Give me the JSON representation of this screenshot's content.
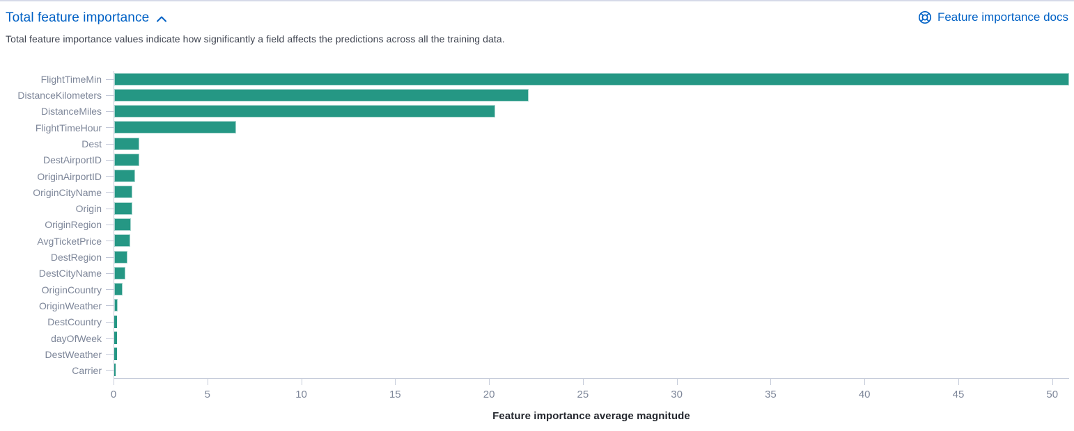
{
  "panel": {
    "title": "Total feature importance",
    "docs_link": "Feature importance docs",
    "description": "Total feature importance values indicate how significantly a field affects the predictions across all the training data."
  },
  "colors": {
    "accent_blue": "#0061c5",
    "bar_teal": "#259784",
    "axis_line": "#c6ccda",
    "axis_text": "#7d8699",
    "body_text": "#3f4450"
  },
  "chart_data": {
    "type": "bar",
    "orientation": "horizontal",
    "title": "",
    "xlabel": "Feature importance average magnitude",
    "ylabel": "",
    "categories": [
      "FlightTimeMin",
      "DistanceKilometers",
      "DistanceMiles",
      "FlightTimeHour",
      "Dest",
      "DestAirportID",
      "OriginAirportID",
      "OriginCityName",
      "Origin",
      "OriginRegion",
      "AvgTicketPrice",
      "DestRegion",
      "DestCityName",
      "OriginCountry",
      "OriginWeather",
      "DestCountry",
      "dayOfWeek",
      "DestWeather",
      "Carrier"
    ],
    "values": [
      50.9,
      22.1,
      20.3,
      6.5,
      1.35,
      1.32,
      1.1,
      0.98,
      0.95,
      0.88,
      0.85,
      0.72,
      0.61,
      0.43,
      0.2,
      0.16,
      0.15,
      0.14,
      0.08
    ],
    "xlim": [
      0,
      50.9
    ],
    "xticks": [
      0,
      5,
      10,
      15,
      20,
      25,
      30,
      35,
      40,
      45,
      50
    ],
    "grid": false,
    "legend": false
  }
}
